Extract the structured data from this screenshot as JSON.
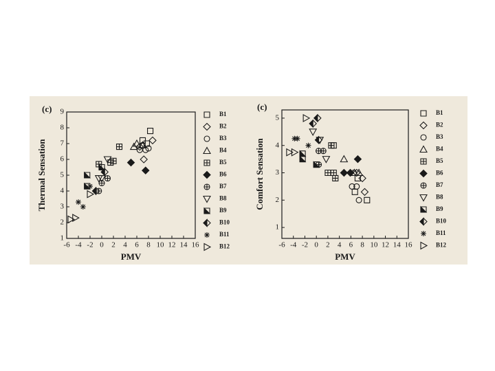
{
  "chart_data": [
    {
      "type": "scatter",
      "panel_label": "(c)",
      "x_label": "PMV",
      "y_label": "Thermal Sensation",
      "xlim": [
        -6,
        16
      ],
      "ylim": [
        1,
        9
      ],
      "xticks": [
        -6,
        -4,
        -2,
        0,
        2,
        4,
        6,
        8,
        10,
        12,
        14,
        16
      ],
      "yticks": [
        1,
        2,
        3,
        4,
        5,
        6,
        7,
        8,
        9
      ],
      "series": [
        {
          "name": "B1",
          "color": "#1a1a1a",
          "marker": "square",
          "x": [
            8.3,
            7,
            7.7
          ],
          "values": [
            7.8,
            7.2,
            7.0
          ]
        },
        {
          "name": "B2",
          "color": "#1a1a1a",
          "marker": "diamond",
          "x": [
            8.7,
            7.2,
            6.5
          ],
          "values": [
            7.2,
            6.0,
            6.8
          ]
        },
        {
          "name": "B3",
          "color": "#1a1a1a",
          "marker": "circle",
          "x": [
            7.5,
            6.5,
            8,
            7
          ],
          "values": [
            6.6,
            6.6,
            6.7,
            6.9
          ]
        },
        {
          "name": "B4",
          "color": "#1a1a1a",
          "marker": "triangle",
          "x": [
            6,
            5.5,
            7
          ],
          "values": [
            7.0,
            6.8,
            6.9
          ]
        },
        {
          "name": "B5",
          "color": "#1a1a1a",
          "marker": "square-plus",
          "x": [
            3,
            1.5,
            2,
            -0.5
          ],
          "values": [
            6.8,
            5.8,
            5.9,
            5.7
          ]
        },
        {
          "name": "B6",
          "color": "#1a1a1a",
          "marker": "diamond-filled",
          "x": [
            7.5,
            5
          ],
          "values": [
            5.3,
            5.8
          ]
        },
        {
          "name": "B7",
          "color": "#1a1a1a",
          "marker": "circle-plus",
          "x": [
            0,
            1,
            -0.5
          ],
          "values": [
            4.5,
            4.8,
            4.0
          ]
        },
        {
          "name": "B8",
          "color": "#1a1a1a",
          "marker": "triangle-down",
          "x": [
            -0.5,
            0,
            1
          ],
          "values": [
            4.8,
            4.8,
            6.0
          ]
        },
        {
          "name": "B9",
          "color": "#1a1a1a",
          "marker": "square-half",
          "x": [
            -2.5,
            -2.5,
            0
          ],
          "values": [
            5.0,
            4.3,
            5.5
          ]
        },
        {
          "name": "B10",
          "color": "#1a1a1a",
          "marker": "diamond-half",
          "x": [
            -1,
            0.5
          ],
          "values": [
            4.0,
            5.2
          ]
        },
        {
          "name": "B11",
          "color": "#1a1a1a",
          "marker": "asterisk",
          "x": [
            -4,
            -3.2,
            -2
          ],
          "values": [
            3.3,
            3.0,
            4.3
          ]
        },
        {
          "name": "B12",
          "color": "#1a1a1a",
          "marker": "triangle-right",
          "x": [
            -4.5,
            -5.3,
            -2
          ],
          "values": [
            2.3,
            2.2,
            3.8
          ]
        }
      ]
    },
    {
      "type": "scatter",
      "panel_label": "(c)",
      "x_label": "PMV",
      "y_label": "Comfort Sensation",
      "xlim": [
        -6,
        16
      ],
      "ylim": [
        0.6,
        5.3
      ],
      "xticks": [
        -6,
        -4,
        -2,
        0,
        2,
        4,
        6,
        8,
        10,
        12,
        14,
        16
      ],
      "yticks": [
        1,
        2,
        3,
        4,
        5
      ],
      "series": [
        {
          "name": "B1",
          "color": "#1a1a1a",
          "marker": "square",
          "x": [
            3,
            7.2,
            8.8,
            6.7
          ],
          "values": [
            4.0,
            2.8,
            2.0,
            2.3
          ]
        },
        {
          "name": "B2",
          "color": "#1a1a1a",
          "marker": "diamond",
          "x": [
            8.4,
            8,
            7
          ],
          "values": [
            2.3,
            2.8,
            3.0
          ]
        },
        {
          "name": "B3",
          "color": "#1a1a1a",
          "marker": "circle",
          "x": [
            6.5,
            6.2,
            7.4,
            7
          ],
          "values": [
            3.0,
            2.5,
            2.0,
            2.5
          ]
        },
        {
          "name": "B4",
          "color": "#1a1a1a",
          "marker": "triangle",
          "x": [
            4.8,
            6.6,
            7.4
          ],
          "values": [
            3.5,
            3.0,
            3.0
          ]
        },
        {
          "name": "B5",
          "color": "#1a1a1a",
          "marker": "square-plus",
          "x": [
            2,
            3,
            3.3,
            2.6
          ],
          "values": [
            3.0,
            3.0,
            2.8,
            4.0
          ]
        },
        {
          "name": "B6",
          "color": "#1a1a1a",
          "marker": "diamond-filled",
          "x": [
            7.2,
            5.9,
            4.8
          ],
          "values": [
            3.5,
            3.0,
            3.0
          ]
        },
        {
          "name": "B7",
          "color": "#1a1a1a",
          "marker": "circle-plus",
          "x": [
            1.2,
            0.4,
            0.4
          ],
          "values": [
            3.8,
            3.8,
            3.3
          ]
        },
        {
          "name": "B8",
          "color": "#1a1a1a",
          "marker": "triangle-down",
          "x": [
            -0.6,
            0.6,
            1.7
          ],
          "values": [
            4.5,
            4.2,
            3.5
          ]
        },
        {
          "name": "B9",
          "color": "#1a1a1a",
          "marker": "square-half",
          "x": [
            -2.4,
            -2.4,
            0
          ],
          "values": [
            3.7,
            3.5,
            3.3
          ]
        },
        {
          "name": "B10",
          "color": "#1a1a1a",
          "marker": "diamond-half",
          "x": [
            0.2,
            -0.6,
            0.4
          ],
          "values": [
            5.0,
            4.8,
            4.2
          ]
        },
        {
          "name": "B11",
          "color": "#1a1a1a",
          "marker": "asterisk",
          "x": [
            -3.3,
            -3.8,
            -1.4
          ],
          "values": [
            4.25,
            4.25,
            4.0
          ]
        },
        {
          "name": "B12",
          "color": "#1a1a1a",
          "marker": "triangle-right",
          "x": [
            -4.7,
            -3.8,
            -1.8
          ],
          "values": [
            3.75,
            3.75,
            5.0
          ]
        }
      ]
    }
  ]
}
